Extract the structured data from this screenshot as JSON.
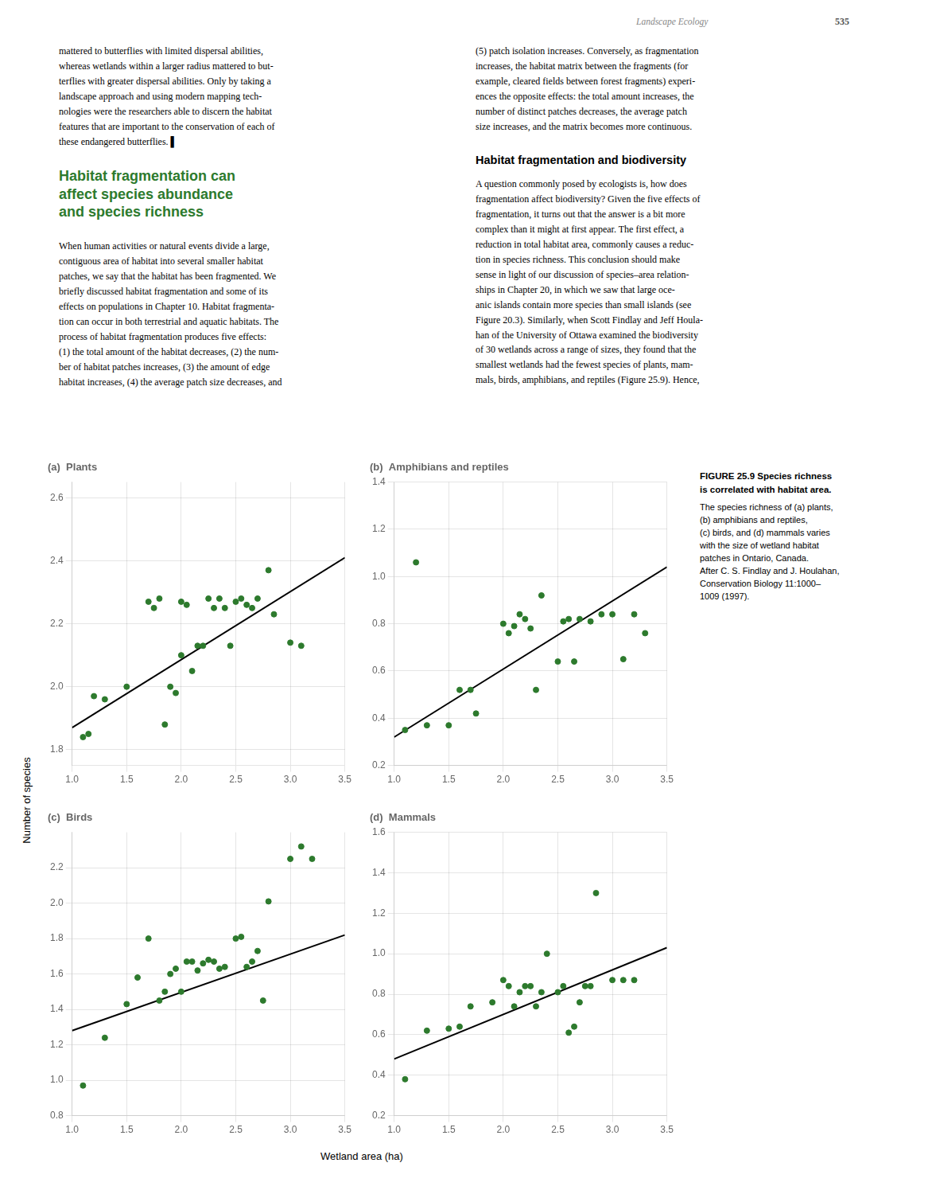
{
  "chart_data": [
    {
      "type": "scatter",
      "title": "(a)  Plants",
      "grid": true,
      "xlim": [
        1.0,
        3.5
      ],
      "ylim": [
        1.75,
        2.65
      ],
      "xticks": [
        {
          "value": 1.0,
          "label": "1.0"
        },
        1.5,
        {
          "value": 2.0,
          "label": "2.0"
        },
        2.5,
        {
          "value": 3.0,
          "label": "3.0"
        },
        3.5
      ],
      "yticks": [
        1.8,
        {
          "value": 2.0,
          "label": "2.0"
        },
        2.2,
        2.4,
        2.6
      ],
      "series": [
        {
          "type": "scatter",
          "color": "#2d7a2d",
          "x": [
            1.1,
            1.15,
            1.2,
            1.3,
            1.5,
            1.7,
            1.75,
            1.8,
            1.85,
            1.9,
            1.95,
            2.0,
            2.0,
            2.05,
            2.1,
            2.15,
            2.2,
            2.25,
            2.3,
            2.35,
            2.4,
            2.45,
            2.5,
            2.55,
            2.6,
            2.65,
            2.7,
            2.8,
            2.85,
            3.0,
            3.1
          ],
          "values": [
            1.84,
            1.85,
            1.97,
            1.96,
            2.0,
            2.27,
            2.25,
            2.28,
            1.88,
            2.0,
            1.98,
            2.1,
            2.27,
            2.26,
            2.05,
            2.13,
            2.13,
            2.28,
            2.25,
            2.28,
            2.25,
            2.13,
            2.27,
            2.28,
            2.26,
            2.25,
            2.28,
            2.37,
            2.23,
            2.14,
            2.13
          ]
        },
        {
          "type": "line",
          "color": "#000000",
          "x": [
            1.0,
            3.5
          ],
          "values": [
            1.87,
            2.41
          ]
        }
      ]
    },
    {
      "type": "scatter",
      "title": "(b)  Amphibians and reptiles",
      "grid": true,
      "xlim": [
        1.0,
        3.5
      ],
      "ylim": [
        0.2,
        1.4
      ],
      "xticks": [
        {
          "value": 1.0,
          "label": "1.0"
        },
        1.5,
        {
          "value": 2.0,
          "label": "2.0"
        },
        2.5,
        {
          "value": 3.0,
          "label": "3.0"
        },
        3.5
      ],
      "yticks": [
        0.2,
        0.4,
        0.6,
        0.8,
        {
          "value": 1.0,
          "label": "1.0"
        },
        1.2,
        1.4
      ],
      "series": [
        {
          "type": "scatter",
          "color": "#2d7a2d",
          "x": [
            1.1,
            1.2,
            1.3,
            1.5,
            1.6,
            1.7,
            1.75,
            2.0,
            2.05,
            2.1,
            2.15,
            2.2,
            2.25,
            2.3,
            2.35,
            2.5,
            2.55,
            2.6,
            2.65,
            2.7,
            2.8,
            2.9,
            3.0,
            3.1,
            3.2,
            3.3
          ],
          "values": [
            0.35,
            1.06,
            0.37,
            0.37,
            0.52,
            0.52,
            0.42,
            0.8,
            0.76,
            0.79,
            0.84,
            0.82,
            0.78,
            0.52,
            0.92,
            0.64,
            0.81,
            0.82,
            0.64,
            0.82,
            0.81,
            0.84,
            0.84,
            0.65,
            0.84,
            0.76
          ]
        },
        {
          "type": "line",
          "color": "#000000",
          "x": [
            1.0,
            3.5
          ],
          "values": [
            0.32,
            1.04
          ]
        }
      ]
    },
    {
      "type": "scatter",
      "title": "(c)  Birds",
      "grid": true,
      "xlim": [
        1.0,
        3.5
      ],
      "ylim": [
        0.8,
        2.4
      ],
      "xticks": [
        {
          "value": 1.0,
          "label": "1.0"
        },
        1.5,
        {
          "value": 2.0,
          "label": "2.0"
        },
        2.5,
        {
          "value": 3.0,
          "label": "3.0"
        },
        3.5
      ],
      "yticks": [
        0.8,
        {
          "value": 1.0,
          "label": "1.0"
        },
        1.2,
        1.4,
        1.6,
        1.8,
        {
          "value": 2.0,
          "label": "2.0"
        },
        2.2
      ],
      "series": [
        {
          "type": "scatter",
          "color": "#2d7a2d",
          "x": [
            1.1,
            1.3,
            1.5,
            1.6,
            1.7,
            1.8,
            1.85,
            1.9,
            1.95,
            2.0,
            2.05,
            2.1,
            2.15,
            2.2,
            2.25,
            2.3,
            2.35,
            2.4,
            2.5,
            2.55,
            2.6,
            2.65,
            2.7,
            2.75,
            2.8,
            3.0,
            3.1,
            3.2
          ],
          "values": [
            0.97,
            1.24,
            1.43,
            1.58,
            1.8,
            1.45,
            1.5,
            1.6,
            1.63,
            1.5,
            1.67,
            1.67,
            1.62,
            1.66,
            1.68,
            1.67,
            1.63,
            1.64,
            1.8,
            1.81,
            1.64,
            1.67,
            1.73,
            1.45,
            2.01,
            2.25,
            2.32,
            2.25
          ]
        },
        {
          "type": "line",
          "color": "#000000",
          "x": [
            1.0,
            3.5
          ],
          "values": [
            1.28,
            1.82
          ]
        }
      ]
    },
    {
      "type": "scatter",
      "title": "(d)  Mammals",
      "grid": true,
      "xlim": [
        1.0,
        3.5
      ],
      "ylim": [
        0.2,
        1.6
      ],
      "xticks": [
        {
          "value": 1.0,
          "label": "1.0"
        },
        1.5,
        {
          "value": 2.0,
          "label": "2.0"
        },
        2.5,
        {
          "value": 3.0,
          "label": "3.0"
        },
        3.5
      ],
      "yticks": [
        0.2,
        0.4,
        0.6,
        0.8,
        {
          "value": 1.0,
          "label": "1.0"
        },
        1.2,
        1.4,
        1.6
      ],
      "series": [
        {
          "type": "scatter",
          "color": "#2d7a2d",
          "x": [
            1.1,
            1.3,
            1.5,
            1.6,
            1.7,
            1.9,
            2.0,
            2.05,
            2.1,
            2.15,
            2.2,
            2.25,
            2.3,
            2.35,
            2.4,
            2.5,
            2.55,
            2.6,
            2.65,
            2.7,
            2.75,
            2.8,
            2.85,
            3.0,
            3.1,
            3.2
          ],
          "values": [
            0.38,
            0.62,
            0.63,
            0.64,
            0.74,
            0.76,
            0.87,
            0.84,
            0.74,
            0.81,
            0.84,
            0.84,
            0.74,
            0.81,
            1.0,
            0.81,
            0.84,
            0.61,
            0.64,
            0.76,
            0.84,
            0.84,
            1.3,
            0.87,
            0.87,
            0.87
          ]
        },
        {
          "type": "line",
          "color": "#000000",
          "x": [
            1.0,
            3.5
          ],
          "values": [
            0.48,
            1.03
          ]
        }
      ]
    }
  ],
  "xlabel": "Wetland area (ha)",
  "ylabel": "Number of species",
  "annotations": [
    "Landscape Ecology",
    "535",
    "mattered to butterflies with limited dispersal abilities,\nwhereas wetlands within a larger radius mattered to but-\nterflies with greater dispersal abilities. Only by taking a\nlandscape approach and using modern mapping tech-\nnologies were the researchers able to discern the habitat\nfeatures that are important to the conservation of each of\nthese endangered butterflies. ▌",
    "Habitat fragmentation can\naffect species abundance\nand species richness",
    "When human activities or natural events divide a large,\ncontiguous area of habitat into several smaller habitat\npatches, we say that the habitat has been fragmented. We\nbriefly discussed habitat fragmentation and some of its\neffects on populations in Chapter 10. Habitat fragmenta-\ntion can occur in both terrestrial and aquatic habitats. The\nprocess of habitat fragmentation produces five effects:\n(1) the total amount of the habitat decreases, (2) the num-\nber of habitat patches increases, (3) the amount of edge\nhabitat increases, (4) the average patch size decreases, and",
    "(5) patch isolation increases. Conversely, as fragmentation\nincreases, the habitat matrix between the fragments (for\nexample, cleared fields between forest fragments) experi-\nences the opposite effects: the total amount increases, the\nnumber of distinct patches decreases, the average patch\nsize increases, and the matrix becomes more continuous.",
    "Habitat fragmentation and biodiversity",
    "A question commonly posed by ecologists is, how does\nfragmentation affect biodiversity? Given the five effects of\nfragmentation, it turns out that the answer is a bit more\ncomplex than it might at first appear. The first effect, a\nreduction in total habitat area, commonly causes a reduc-\ntion in species richness. This conclusion should make\nsense in light of our discussion of species–area relation-\nships in Chapter 20, in which we saw that large oce-\nanic islands contain more species than small islands (see\nFigure 20.3). Similarly, when Scott Findlay and Jeff Houla-\nhan of the University of Ottawa examined the biodiversity\nof 30 wetlands across a range of sizes, they found that the\nsmallest wetlands had the fewest species of plants, mam-\nmals, birds, amphibians, and reptiles (Figure 25.9). Hence,",
    "FIGURE 25.9 Species richness\nis correlated with habitat area.",
    "The species richness of (a) plants,\n(b) amphibians and reptiles,\n(c) birds, and (d) mammals varies\nwith the size of wetland habitat\npatches in Ontario, Canada.\nAfter C. S. Findlay and J. Houlahan,\nConservation Biology 11:1000–\n1009 (1997)."
  ]
}
